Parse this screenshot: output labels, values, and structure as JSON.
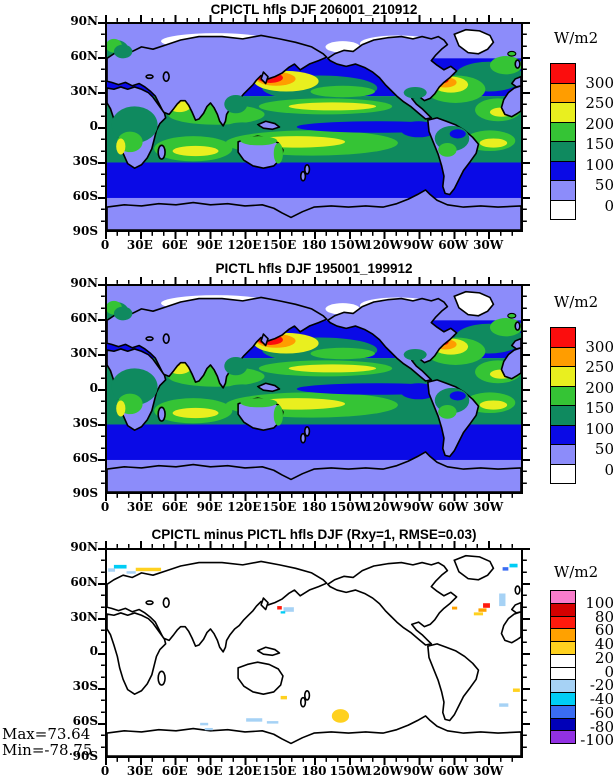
{
  "figure": {
    "background": "#ffffff",
    "variable": "hfls",
    "season": "DJF",
    "units": "W/m2"
  },
  "axes": {
    "x_labels": [
      "0",
      "30E",
      "60E",
      "90E",
      "120E",
      "150E",
      "180",
      "150W",
      "120W",
      "90W",
      "60W",
      "30W"
    ],
    "y_labels": [
      "90N",
      "60N",
      "30N",
      "0",
      "30S",
      "60S",
      "90S"
    ]
  },
  "panels": [
    {
      "id": "cpictl",
      "title": "CPICTL hfls DJF 206001_210912",
      "colorbar": {
        "units": "W/m2",
        "tick_labels": [
          "300",
          "250",
          "200",
          "150",
          "100",
          "50",
          "0"
        ],
        "colors": [
          "#fb0d0d",
          "#ff9d00",
          "#e9ef1f",
          "#35c435",
          "#0f8a5f",
          "#0a0ae6",
          "#8c8cfa",
          "#ffffff"
        ]
      }
    },
    {
      "id": "pictl",
      "title": "PICTL hfls DJF 195001_199912",
      "colorbar": {
        "units": "W/m2",
        "tick_labels": [
          "300",
          "250",
          "200",
          "150",
          "100",
          "50",
          "0"
        ],
        "colors": [
          "#fb0d0d",
          "#ff9d00",
          "#e9ef1f",
          "#35c435",
          "#0f8a5f",
          "#0a0ae6",
          "#8c8cfa",
          "#ffffff"
        ]
      }
    },
    {
      "id": "diff",
      "title": "CPICTL minus PICTL hfls DJF (Rxy=1, RMSE=0.03)",
      "colorbar": {
        "units": "W/m2",
        "tick_labels": [
          "100",
          "80",
          "60",
          "40",
          "20",
          "0",
          "-20",
          "-40",
          "-60",
          "-80",
          "-100"
        ],
        "colors": [
          "#f97ccb",
          "#d40000",
          "#ff1a0d",
          "#ffa100",
          "#ffd11f",
          "#ffffff",
          "#ffffff",
          "#a6d2f5",
          "#00cdf5",
          "#3a6cf2",
          "#0000b8",
          "#9231e3"
        ]
      }
    }
  ],
  "stats": {
    "max": "Max=73.64",
    "min": "Min=-78.75"
  },
  "chart_data": [
    {
      "type": "heatmap",
      "subtype": "filled-contour world map, equirectangular, longitude 0E eastward to 30W",
      "title": "CPICTL hfls DJF 206001_210912",
      "variable": "hfls (surface latent heat flux)",
      "season": "DJF",
      "period": "206001_210912",
      "units": "W/m2",
      "xlabel_ticks": [
        "0",
        "30E",
        "60E",
        "90E",
        "120E",
        "150E",
        "180",
        "150W",
        "120W",
        "90W",
        "60W",
        "30W"
      ],
      "ylabel_ticks": [
        "90N",
        "60N",
        "30N",
        "0",
        "30S",
        "60S",
        "90S"
      ],
      "xlim": [
        0,
        360
      ],
      "ylim": [
        -90,
        90
      ],
      "levels": [
        0,
        50,
        100,
        150,
        200,
        250,
        300
      ],
      "palette_low_to_high": [
        "#ffffff",
        "#8c8cfa",
        "#0a0ae6",
        "#0f8a5f",
        "#35c435",
        "#e9ef1f",
        "#ff9d00",
        "#fb0d0d"
      ],
      "legend_position": "right",
      "features": [
        "maxima >300 W/m2 (red) over the Kuroshio east of Japan and the Gulf Stream off eastern North America",
        "150-250 W/m2 (green-yellow) bands across subtropical and tropical oceans, Arabian Sea and south Indian Ocean",
        "50-100 W/m2 (blue) over mid-latitude oceans and the equatorial Pacific cold tongue",
        "0-50 W/m2 (periwinkle) over most land, polar oceans and Antarctica",
        "<0 (white) patches over Siberia, northern Canada and Greenland"
      ]
    },
    {
      "type": "heatmap",
      "subtype": "filled-contour world map, equirectangular, longitude 0E eastward to 30W",
      "title": "PICTL hfls DJF 195001_199912",
      "variable": "hfls (surface latent heat flux)",
      "season": "DJF",
      "period": "195001_199912",
      "units": "W/m2",
      "xlabel_ticks": [
        "0",
        "30E",
        "60E",
        "90E",
        "120E",
        "150E",
        "180",
        "150W",
        "120W",
        "90W",
        "60W",
        "30W"
      ],
      "ylabel_ticks": [
        "90N",
        "60N",
        "30N",
        "0",
        "30S",
        "60S",
        "90S"
      ],
      "xlim": [
        0,
        360
      ],
      "ylim": [
        -90,
        90
      ],
      "levels": [
        0,
        50,
        100,
        150,
        200,
        250,
        300
      ],
      "palette_low_to_high": [
        "#ffffff",
        "#8c8cfa",
        "#0a0ae6",
        "#0f8a5f",
        "#35c435",
        "#e9ef1f",
        "#ff9d00",
        "#fb0d0d"
      ],
      "legend_position": "right",
      "features": [
        "pattern essentially identical to CPICTL panel (spatial correlation Rxy=1)",
        "red maxima over Kuroshio and Gulf Stream, green/yellow tropics, blue mid-latitude oceans, periwinkle poles/land, white over Siberia/Canada/Greenland"
      ]
    },
    {
      "type": "heatmap",
      "subtype": "difference map (CPICTL minus PICTL)",
      "title": "CPICTL minus PICTL hfls DJF (Rxy=1, RMSE=0.03)",
      "units": "W/m2",
      "rxy": 1,
      "rmse": 0.03,
      "max": 73.64,
      "min": -78.75,
      "xlabel_ticks": [
        "0",
        "30E",
        "60E",
        "90E",
        "120E",
        "150E",
        "180",
        "150W",
        "120W",
        "90W",
        "60W",
        "30W"
      ],
      "ylabel_ticks": [
        "90N",
        "60N",
        "30N",
        "0",
        "30S",
        "60S",
        "90S"
      ],
      "xlim": [
        0,
        360
      ],
      "ylim": [
        -90,
        90
      ],
      "levels": [
        -100,
        -80,
        -60,
        -40,
        -20,
        0,
        20,
        40,
        60,
        80,
        100
      ],
      "palette_low_to_high": [
        "#9231e3",
        "#0000b8",
        "#3a6cf2",
        "#00cdf5",
        "#a6d2f5",
        "#ffffff",
        "#ffffff",
        "#ffd11f",
        "#ffa100",
        "#ff1a0d",
        "#d40000",
        "#f97ccb"
      ],
      "legend_position": "right",
      "features": [
        "differences within -20..20 W/m2 (white) almost everywhere",
        "small positive (yellow/orange/red) flecks near the Kuroshio, the North Atlantic/Gulf Stream, ~55S 175E and the Barents Sea",
        "small negative (light blue/cyan/blue) flecks in the Arctic, near Greenland and along ~55-60S"
      ]
    }
  ]
}
